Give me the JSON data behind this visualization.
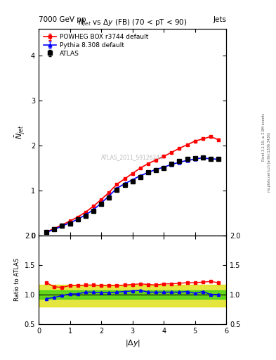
{
  "title_top": "7000 GeV pp",
  "title_right": "Jets",
  "watermark": "ATLAS_2011_S9126244",
  "ylabel_main": "$\\bar{N}_{jet}$",
  "ylabel_ratio": "Ratio to ATLAS",
  "xlabel": "|$\\Delta y$|",
  "atlas_x": [
    0.25,
    0.5,
    0.75,
    1.0,
    1.25,
    1.5,
    1.75,
    2.0,
    2.25,
    2.5,
    2.75,
    3.0,
    3.25,
    3.5,
    3.75,
    4.0,
    4.25,
    4.5,
    4.75,
    5.0,
    5.25,
    5.5,
    5.75
  ],
  "atlas_y": [
    0.07,
    0.14,
    0.21,
    0.27,
    0.35,
    0.43,
    0.55,
    0.7,
    0.84,
    1.02,
    1.12,
    1.2,
    1.3,
    1.4,
    1.46,
    1.5,
    1.6,
    1.65,
    1.7,
    1.72,
    1.73,
    1.7,
    1.7
  ],
  "atlas_yerr": [
    0.005,
    0.007,
    0.008,
    0.009,
    0.01,
    0.01,
    0.012,
    0.014,
    0.015,
    0.016,
    0.016,
    0.017,
    0.018,
    0.019,
    0.02,
    0.02,
    0.021,
    0.022,
    0.023,
    0.024,
    0.024,
    0.024,
    0.024
  ],
  "powheg_x": [
    0.25,
    0.5,
    0.75,
    1.0,
    1.25,
    1.5,
    1.75,
    2.0,
    2.25,
    2.5,
    2.75,
    3.0,
    3.25,
    3.5,
    3.75,
    4.0,
    4.25,
    4.5,
    4.75,
    5.0,
    5.25,
    5.5,
    5.75
  ],
  "powheg_y": [
    0.08,
    0.155,
    0.235,
    0.32,
    0.41,
    0.52,
    0.65,
    0.8,
    0.96,
    1.14,
    1.26,
    1.38,
    1.5,
    1.6,
    1.68,
    1.76,
    1.85,
    1.94,
    2.02,
    2.1,
    2.15,
    2.2,
    2.13
  ],
  "powheg_yerr": [
    0.004,
    0.006,
    0.007,
    0.008,
    0.009,
    0.01,
    0.011,
    0.012,
    0.013,
    0.014,
    0.014,
    0.015,
    0.016,
    0.016,
    0.017,
    0.018,
    0.018,
    0.019,
    0.02,
    0.02,
    0.021,
    0.022,
    0.022
  ],
  "pythia_x": [
    0.25,
    0.5,
    0.75,
    1.0,
    1.25,
    1.5,
    1.75,
    2.0,
    2.25,
    2.5,
    2.75,
    3.0,
    3.25,
    3.5,
    3.75,
    4.0,
    4.25,
    4.5,
    4.75,
    5.0,
    5.25,
    5.5,
    5.75
  ],
  "pythia_y": [
    0.07,
    0.135,
    0.21,
    0.28,
    0.36,
    0.46,
    0.57,
    0.72,
    0.88,
    1.05,
    1.15,
    1.24,
    1.33,
    1.4,
    1.47,
    1.52,
    1.58,
    1.63,
    1.67,
    1.7,
    1.73,
    1.7,
    1.7
  ],
  "pythia_yerr": [
    0.003,
    0.005,
    0.006,
    0.007,
    0.008,
    0.009,
    0.01,
    0.011,
    0.012,
    0.013,
    0.013,
    0.014,
    0.015,
    0.015,
    0.016,
    0.016,
    0.017,
    0.017,
    0.018,
    0.018,
    0.019,
    0.019,
    0.019
  ],
  "ratio_powheg_x": [
    0.25,
    0.5,
    0.75,
    1.0,
    1.25,
    1.5,
    1.75,
    2.0,
    2.25,
    2.5,
    2.75,
    3.0,
    3.25,
    3.5,
    3.75,
    4.0,
    4.25,
    4.5,
    4.75,
    5.0,
    5.25,
    5.5,
    5.75
  ],
  "ratio_powheg": [
    1.2,
    1.13,
    1.12,
    1.15,
    1.15,
    1.16,
    1.16,
    1.15,
    1.15,
    1.15,
    1.16,
    1.17,
    1.18,
    1.17,
    1.16,
    1.18,
    1.18,
    1.19,
    1.2,
    1.2,
    1.21,
    1.22,
    1.2
  ],
  "ratio_powheg_err": [
    0.015,
    0.012,
    0.01,
    0.01,
    0.01,
    0.01,
    0.01,
    0.01,
    0.01,
    0.01,
    0.01,
    0.01,
    0.01,
    0.01,
    0.01,
    0.01,
    0.01,
    0.01,
    0.01,
    0.01,
    0.01,
    0.01,
    0.012
  ],
  "ratio_pythia_x": [
    0.25,
    0.5,
    0.75,
    1.0,
    1.25,
    1.5,
    1.75,
    2.0,
    2.25,
    2.5,
    2.75,
    3.0,
    3.25,
    3.5,
    3.75,
    4.0,
    4.25,
    4.5,
    4.75,
    5.0,
    5.25,
    5.5,
    5.75
  ],
  "ratio_pythia": [
    0.93,
    0.95,
    0.98,
    1.01,
    1.01,
    1.04,
    1.04,
    1.03,
    1.03,
    1.04,
    1.05,
    1.06,
    1.07,
    1.04,
    1.04,
    1.04,
    1.04,
    1.04,
    1.05,
    1.02,
    1.05,
    1.0,
    1.0
  ],
  "ratio_pythia_err": [
    0.008,
    0.007,
    0.006,
    0.006,
    0.006,
    0.006,
    0.006,
    0.006,
    0.006,
    0.006,
    0.006,
    0.006,
    0.006,
    0.006,
    0.006,
    0.006,
    0.006,
    0.006,
    0.006,
    0.006,
    0.006,
    0.006,
    0.006
  ],
  "band_green_lo": 0.93,
  "band_green_hi": 1.07,
  "band_yellow_lo": 0.8,
  "band_yellow_hi": 1.17,
  "xlim": [
    0,
    6
  ],
  "ylim_main": [
    0,
    4.6
  ],
  "ylim_ratio": [
    0.5,
    2.0
  ],
  "color_atlas": "#000000",
  "color_powheg": "#ff0000",
  "color_pythia": "#0000ff",
  "color_green_band": "#00cc00",
  "color_yellow_band": "#dddd00",
  "color_bg": "#ffffff"
}
